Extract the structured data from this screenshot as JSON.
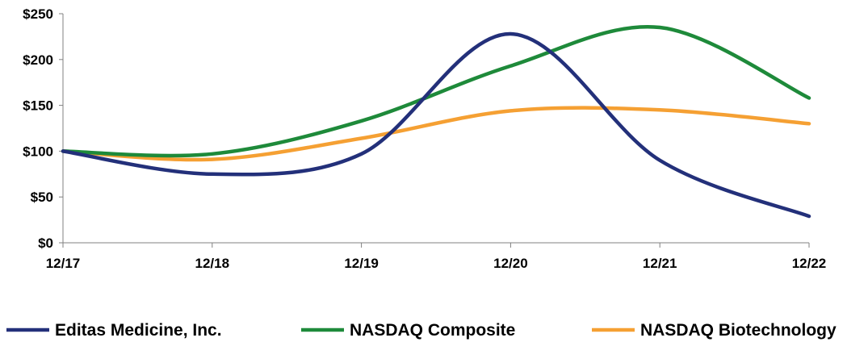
{
  "chart_data": {
    "type": "line",
    "title": "",
    "xlabel": "",
    "ylabel": "",
    "categories": [
      "12/17",
      "12/18",
      "12/19",
      "12/20",
      "12/21",
      "12/22"
    ],
    "ylim": [
      0,
      250
    ],
    "yticks": [
      0,
      50,
      100,
      150,
      200,
      250
    ],
    "ytick_labels": [
      "$0",
      "$50",
      "$100",
      "$150",
      "$200",
      "$250"
    ],
    "grid": false,
    "legend_position": "bottom",
    "smooth": true,
    "series": [
      {
        "name": "Editas Medicine, Inc.",
        "color": "#23307a",
        "values": [
          100,
          75,
          97,
          228,
          90,
          29
        ]
      },
      {
        "name": "NASDAQ Composite",
        "color": "#1e8a3a",
        "values": [
          100,
          97,
          133,
          193,
          235,
          158
        ]
      },
      {
        "name": "NASDAQ Biotechnology",
        "color": "#f5a033",
        "values": [
          100,
          91,
          114,
          144,
          145,
          130
        ]
      }
    ]
  }
}
